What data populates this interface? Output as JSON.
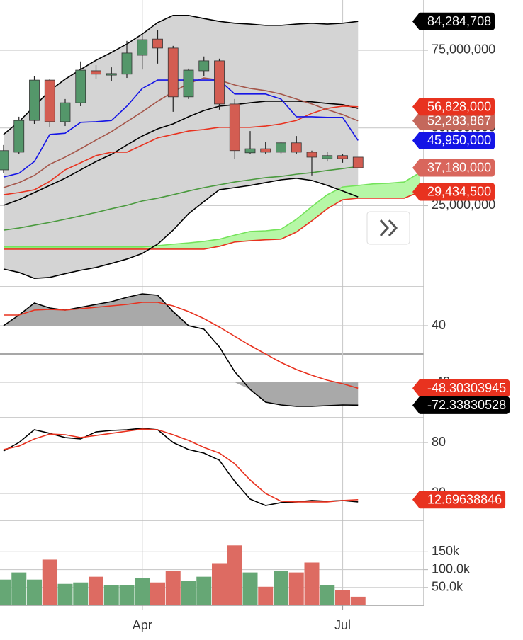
{
  "chart_data": [
    {
      "type": "candlestick",
      "ylim": [
        -1100000,
        91170000
      ],
      "yticks": [
        {
          "value": 25000000,
          "label": "25,000,000"
        },
        {
          "value": 50000000,
          "label": "50,000,000"
        },
        {
          "value": 75000000,
          "label": "75,000,000"
        }
      ],
      "grid": true,
      "up_color": "#54976a",
      "down_color": "#d35d52",
      "open": [
        36500000,
        42200000,
        52400000,
        65400000,
        52000000,
        58100000,
        68400000,
        67000000,
        67300000,
        73400000,
        78600000,
        75700000,
        60000000,
        68400000,
        71600000,
        57700000,
        42000000,
        43300000,
        42200000,
        45200000,
        42200000,
        40100000,
        41100000,
        40600000
      ],
      "high": [
        44500000,
        53600000,
        66600000,
        65700000,
        59300000,
        71400000,
        70200000,
        69500000,
        78000000,
        79800000,
        81400000,
        76400000,
        69100000,
        73000000,
        72300000,
        59300000,
        49000000,
        45600000,
        45600000,
        47400000,
        42700000,
        42200000,
        41500000,
        40600000
      ],
      "low": [
        35400000,
        41500000,
        51300000,
        50200000,
        50600000,
        57000000,
        65700000,
        65000000,
        66100000,
        68800000,
        70700000,
        55200000,
        59300000,
        66600000,
        55900000,
        39900000,
        41500000,
        41500000,
        41700000,
        41500000,
        34700000,
        39200000,
        38800000,
        37000000
      ],
      "close": [
        42700000,
        52400000,
        65400000,
        52000000,
        58100000,
        68600000,
        67300000,
        67500000,
        74100000,
        78400000,
        75700000,
        60000000,
        68600000,
        71600000,
        57700000,
        42700000,
        43300000,
        42200000,
        45200000,
        42200000,
        40600000,
        41100000,
        40100000,
        37180000
      ],
      "band_fill": "#d4d4d4",
      "series": [
        {
          "color": "#000000",
          "values": [
            47900000,
            52000000,
            57000000,
            62000000,
            65700000,
            68800000,
            71800000,
            74300000,
            77000000,
            80200000,
            83900000,
            86200000,
            86200000,
            85200000,
            84300000,
            83700000,
            83400000,
            83000000,
            83000000,
            83400000,
            83700000,
            83400000,
            83700000,
            84284708
          ]
        },
        {
          "color": "#000000",
          "values": [
            4600000,
            3500000,
            1600000,
            1900000,
            3100000,
            4200000,
            5100000,
            6400000,
            7800000,
            9600000,
            12600000,
            17100000,
            22400000,
            26300000,
            30100000,
            30800000,
            31500000,
            32400000,
            33300000,
            33800000,
            33100000,
            31500000,
            29700000,
            27800000
          ]
        },
        {
          "color": "#000000",
          "values": [
            25100000,
            26900000,
            29200000,
            31500000,
            33800000,
            36500000,
            39200000,
            41500000,
            44500000,
            47400000,
            49700000,
            51300000,
            53600000,
            55600000,
            57000000,
            57500000,
            58100000,
            58600000,
            58600000,
            58600000,
            58400000,
            57900000,
            57500000,
            56300000
          ]
        },
        {
          "color": "#4a9a3e",
          "values": [
            17100000,
            17800000,
            18700000,
            19600000,
            20600000,
            21700000,
            22800000,
            24000000,
            25100000,
            26500000,
            27400000,
            28500000,
            29700000,
            30800000,
            31700000,
            32600000,
            33300000,
            34000000,
            34400000,
            35100000,
            35600000,
            36300000,
            36900000,
            37600000
          ]
        },
        {
          "color": "#e8321f",
          "values": [
            28500000,
            29200000,
            30100000,
            32800000,
            36500000,
            38800000,
            41100000,
            42200000,
            42200000,
            44500000,
            46800000,
            47900000,
            49000000,
            49500000,
            50200000,
            50200000,
            50200000,
            50600000,
            51300000,
            52400000,
            54700000,
            56300000,
            57000000,
            56828000
          ]
        },
        {
          "color": "#a5564a",
          "values": [
            30800000,
            32400000,
            34700000,
            38300000,
            40600000,
            43300000,
            46100000,
            48800000,
            52000000,
            55200000,
            58600000,
            61600000,
            64300000,
            66100000,
            65400000,
            63800000,
            62700000,
            62000000,
            60900000,
            59300000,
            57700000,
            55900000,
            54300000,
            52283867
          ]
        },
        {
          "color": "#1515e6",
          "values": [
            34200000,
            35400000,
            39200000,
            47900000,
            48300000,
            51800000,
            52000000,
            52400000,
            57000000,
            62700000,
            65400000,
            65400000,
            65400000,
            65400000,
            65400000,
            60900000,
            60900000,
            60900000,
            59300000,
            53600000,
            53600000,
            53400000,
            53400000,
            45950000
          ]
        }
      ],
      "cloud": {
        "color": "#b6f7a6",
        "upper_color": "#74e35a",
        "lower_color": "#e8321f",
        "upper": [
          11700000,
          11700000,
          11700000,
          11700000,
          11700000,
          11700000,
          11700000,
          11700000,
          11700000,
          11700000,
          12100000,
          12600000,
          13000000,
          13500000,
          14200000,
          15500000,
          16700000,
          16900000,
          17400000,
          20600000,
          24700000,
          28500000,
          31000000,
          31500000,
          32000000,
          32200000,
          32600000,
          35600000
        ],
        "lower": [
          11000000,
          11000000,
          11000000,
          11000000,
          11000000,
          11000000,
          11000000,
          11000000,
          11000000,
          11000000,
          11000000,
          11000000,
          11000000,
          11000000,
          11900000,
          13300000,
          13700000,
          14000000,
          14200000,
          16500000,
          20100000,
          24000000,
          26900000,
          27400000,
          27400000,
          27400000,
          27400000,
          29434500
        ]
      },
      "price_labels": [
        {
          "value": 52283867,
          "label": "52,283,867",
          "color": "#c4685c"
        },
        {
          "value": 56828000,
          "label": "56,828,000",
          "color": "#e8321f"
        },
        {
          "value": 45950000,
          "label": "45,950,000",
          "color": "#1515e6"
        },
        {
          "value": 37180000,
          "label": "37,180,000",
          "color": "#d9665c"
        },
        {
          "value": 29434500,
          "label": "29,434,500",
          "color": "#e8321f"
        },
        {
          "value": 84284708,
          "label": "84,284,708",
          "color": "#000000"
        }
      ]
    },
    {
      "type": "line",
      "ylim": [
        -90,
        95
      ],
      "yticks": [
        -40,
        40
      ],
      "zero_line": true,
      "fill_color": "#a9a9a9",
      "series": [
        {
          "color": "#000000",
          "values": [
            40,
            55,
            72,
            65,
            62,
            66,
            70,
            74,
            80,
            85,
            83,
            60,
            40,
            35,
            10,
            -25,
            -50,
            -68,
            -72,
            -74,
            -74,
            -73,
            -72,
            -72.33830528
          ]
        },
        {
          "color": "#e8321f",
          "values": [
            55,
            55,
            62,
            63,
            62,
            64,
            66,
            68,
            70,
            73,
            73,
            68,
            60,
            50,
            38,
            25,
            12,
            0,
            -12,
            -22,
            -30,
            -37,
            -42,
            -48.30303945
          ]
        }
      ],
      "price_labels": [
        {
          "value": -48.30303945,
          "label": "-48.30303945",
          "color": "#e8321f"
        },
        {
          "value": -72.33830528,
          "label": "-72.33830528",
          "color": "#000000"
        }
      ]
    },
    {
      "type": "line",
      "ylim": [
        -11.7,
        109.2
      ],
      "yticks": [
        20,
        80
      ],
      "series": [
        {
          "color": "#000000",
          "values": [
            70,
            80,
            95,
            90.8,
            85.8,
            84.2,
            92.5,
            94.2,
            95,
            96.7,
            95,
            80,
            71.7,
            67.5,
            59.2,
            34.2,
            13.3,
            5.8,
            9.2,
            10,
            11.7,
            10.8,
            11.7,
            10
          ]
        },
        {
          "color": "#e8321f",
          "values": [
            71.7,
            75.8,
            84.2,
            90,
            89.2,
            85.8,
            88.3,
            90.8,
            93.3,
            95.8,
            95,
            89.2,
            82.5,
            74.2,
            67.5,
            55,
            35.8,
            20,
            10.8,
            10,
            10,
            10,
            11.7,
            12.69638846
          ]
        }
      ],
      "price_labels": [
        {
          "value": 12.69638846,
          "label": "12.69638846",
          "color": "#e8321f"
        }
      ]
    },
    {
      "type": "bar",
      "ylim": [
        0,
        238000
      ],
      "yticks": [
        {
          "value": 50000,
          "label": "50.0k"
        },
        {
          "value": 100000,
          "label": "100.0k"
        },
        {
          "value": 150000,
          "label": "150k"
        }
      ],
      "up_color": "#66a775",
      "down_color": "#dd6b62",
      "categories": [
        null,
        null,
        null,
        null,
        null,
        null,
        null,
        null,
        null,
        "Apr",
        null,
        null,
        null,
        null,
        null,
        null,
        null,
        null,
        null,
        null,
        null,
        null,
        "Jul",
        null,
        null,
        null,
        null,
        null
      ],
      "values": [
        72000,
        92000,
        72000,
        128000,
        60000,
        64000,
        80000,
        56000,
        56000,
        76000,
        64000,
        96000,
        68000,
        80000,
        118000,
        168000,
        92000,
        52000,
        96000,
        92000,
        120000,
        56000,
        42000,
        24000,
        null,
        null,
        null,
        null
      ]
    }
  ]
}
